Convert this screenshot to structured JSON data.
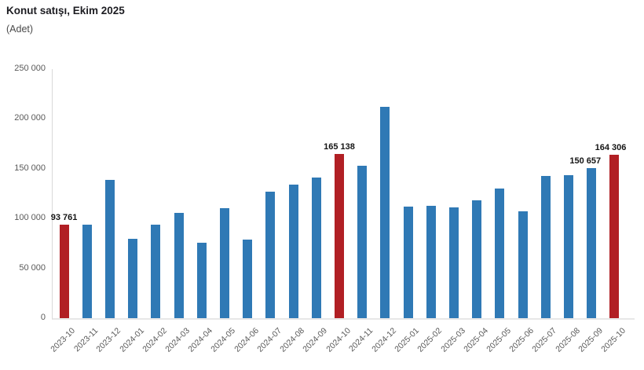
{
  "header": {
    "title": "Konut satışı, Ekim 2025",
    "subtitle": "(Adet)"
  },
  "colors": {
    "bar_default": "#2f79b5",
    "bar_highlight": "#b11f24",
    "axis_line": "#d9d9d9",
    "tick_text": "#595959",
    "data_label_text": "#141414"
  },
  "chart_data": {
    "type": "bar",
    "title": "Konut satışı, Ekim 2025",
    "unit_label": "(Adet)",
    "xlabel": "",
    "ylabel": "Adet",
    "ylim": [
      0,
      250000
    ],
    "grid": false,
    "x_tick_rotation_deg": 45,
    "categories": [
      "2023-10",
      "2023-11",
      "2023-12",
      "2024-01",
      "2024-02",
      "2024-03",
      "2024-04",
      "2024-05",
      "2024-06",
      "2024-07",
      "2024-08",
      "2024-09",
      "2024-10",
      "2024-11",
      "2024-12",
      "2025-01",
      "2025-02",
      "2025-03",
      "2025-04",
      "2025-05",
      "2025-06",
      "2025-07",
      "2025-08",
      "2025-09",
      "2025-10"
    ],
    "values": [
      93761,
      93500,
      138500,
      80000,
      94000,
      105500,
      75500,
      110500,
      79000,
      127000,
      134000,
      141000,
      165138,
      153000,
      212500,
      112000,
      113000,
      111000,
      118500,
      130000,
      107500,
      143000,
      143500,
      150657,
      164306
    ],
    "highlighted_categories": [
      "2023-10",
      "2024-10",
      "2025-10"
    ],
    "data_labels": [
      {
        "category": "2023-10",
        "text": "93 761"
      },
      {
        "category": "2024-10",
        "text": "165 138"
      },
      {
        "category": "2025-09",
        "text": "150 657"
      },
      {
        "category": "2025-10",
        "text": "164 306"
      }
    ],
    "y_ticks": [
      {
        "label": "250 000",
        "value": 250000
      },
      {
        "label": "200 000",
        "value": 200000
      },
      {
        "label": "150 000",
        "value": 150000
      },
      {
        "label": "100 000",
        "value": 100000
      },
      {
        "label": "50 000",
        "value": 50000
      },
      {
        "label": "0",
        "value": 0
      }
    ]
  }
}
